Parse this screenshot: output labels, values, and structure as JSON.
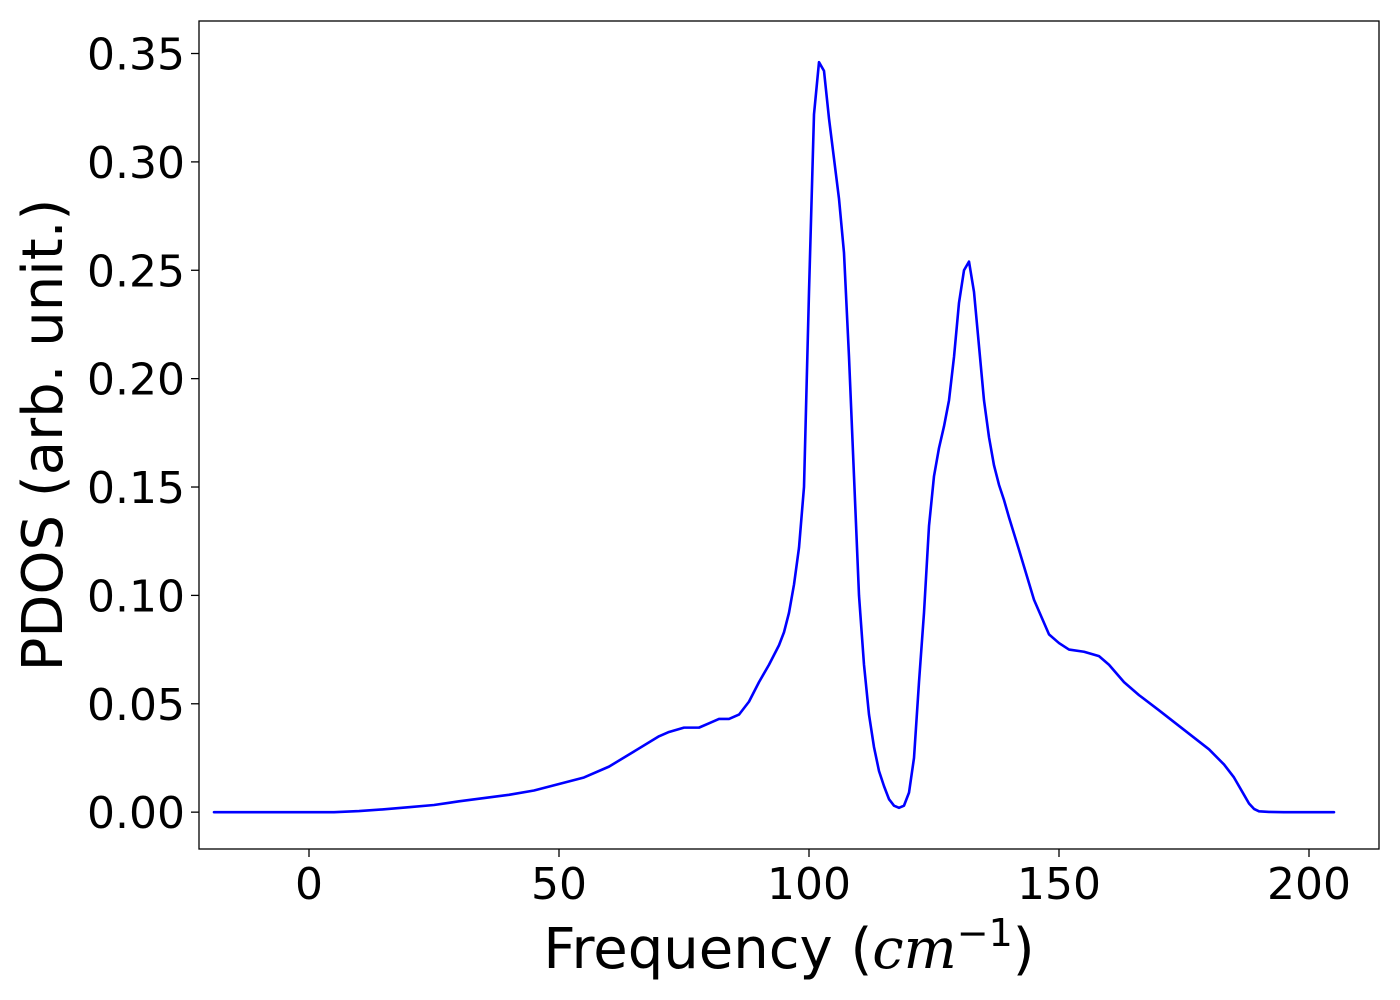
{
  "chart_data": {
    "type": "line",
    "title": "",
    "xlabel": "Frequency",
    "xlabel_unit": "cm",
    "xlabel_unit_exponent": "−1",
    "ylabel": "PDOS (arb. unit.)",
    "xlim": [
      -22,
      214
    ],
    "ylim": [
      -0.017,
      0.365
    ],
    "x_ticks": [
      0,
      50,
      100,
      150,
      200
    ],
    "x_tick_labels": [
      "0",
      "50",
      "100",
      "150",
      "200"
    ],
    "y_ticks": [
      0,
      0.05,
      0.1,
      0.15,
      0.2,
      0.25,
      0.3,
      0.35
    ],
    "y_tick_labels": [
      "0.00",
      "0.05",
      "0.10",
      "0.15",
      "0.20",
      "0.25",
      "0.30",
      "0.35"
    ],
    "grid": false,
    "legend": "none",
    "series": [
      {
        "color": "#0000ff",
        "x": [
          -19,
          -10,
          0,
          5,
          10,
          15,
          20,
          25,
          28,
          30,
          35,
          40,
          45,
          50,
          55,
          60,
          65,
          70,
          72,
          75,
          78,
          80,
          82,
          84,
          86,
          88,
          90,
          92,
          94,
          95,
          96,
          97,
          98,
          99,
          100,
          101,
          102,
          103,
          104,
          106,
          107,
          108,
          109,
          110,
          111,
          112,
          113,
          114,
          115,
          116,
          117,
          118,
          119,
          120,
          121,
          122,
          123,
          124,
          125,
          126,
          127,
          128,
          129,
          130,
          131,
          132,
          133,
          134,
          135,
          136,
          137,
          138,
          139,
          140,
          142,
          145,
          148,
          150,
          152,
          155,
          158,
          160,
          163,
          166,
          170,
          175,
          180,
          183,
          185,
          187,
          188,
          189,
          190,
          192,
          195,
          200,
          205
        ],
        "y": [
          0,
          0,
          0,
          0,
          0.0005,
          0.0013,
          0.0023,
          0.0033,
          0.0043,
          0.005,
          0.0065,
          0.008,
          0.01,
          0.013,
          0.016,
          0.021,
          0.028,
          0.035,
          0.037,
          0.039,
          0.039,
          0.041,
          0.043,
          0.043,
          0.045,
          0.051,
          0.06,
          0.068,
          0.077,
          0.083,
          0.092,
          0.105,
          0.122,
          0.15,
          0.24,
          0.322,
          0.346,
          0.342,
          0.32,
          0.283,
          0.258,
          0.21,
          0.155,
          0.1,
          0.068,
          0.045,
          0.03,
          0.019,
          0.012,
          0.006,
          0.003,
          0.002,
          0.003,
          0.009,
          0.025,
          0.06,
          0.092,
          0.132,
          0.155,
          0.168,
          0.178,
          0.19,
          0.21,
          0.235,
          0.25,
          0.254,
          0.24,
          0.215,
          0.19,
          0.173,
          0.16,
          0.151,
          0.144,
          0.136,
          0.121,
          0.098,
          0.082,
          0.078,
          0.075,
          0.074,
          0.072,
          0.068,
          0.06,
          0.054,
          0.047,
          0.038,
          0.029,
          0.022,
          0.016,
          0.008,
          0.004,
          0.0015,
          0.0004,
          0.0001,
          0,
          0,
          0
        ]
      }
    ]
  }
}
